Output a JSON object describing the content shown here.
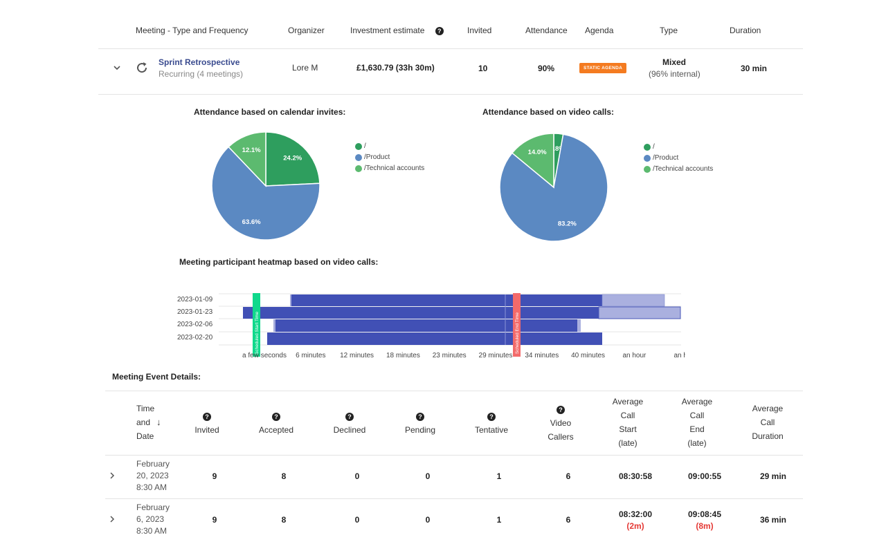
{
  "header": {
    "col_meeting": "Meeting - Type and Frequency",
    "col_organizer": "Organizer",
    "col_investment": "Investment  estimate",
    "col_invited": "Invited",
    "col_attendance": "Attendance",
    "col_agenda": "Agenda",
    "col_type": "Type",
    "col_duration": "Duration"
  },
  "meeting": {
    "title": "Sprint Retrospective",
    "recurrence": "Recurring (4 meetings)",
    "organizer": "Lore M",
    "investment": "£1,630.79 (33h 30m)",
    "invited": "10",
    "attendance": "90%",
    "agenda_badge": "STATIC AGENDA",
    "type": "Mixed",
    "type_detail": "(96% internal)",
    "duration": "30 min"
  },
  "charts_titles": {
    "calendar": "Attendance based on calendar invites:",
    "video": "Attendance based on video calls:",
    "heatmap": "Meeting participant heatmap based on video calls:"
  },
  "legend": [
    {
      "label": "/",
      "color": "#2e9e5e"
    },
    {
      "label": "/Product",
      "color": "#5b89c2"
    },
    {
      "label": "/Technical accounts",
      "color": "#5cba6f"
    }
  ],
  "chart_data": [
    {
      "type": "pie",
      "title": "Attendance based on calendar invites:",
      "labels": [
        "/",
        "/Product",
        "/Technical accounts"
      ],
      "values": [
        24.2,
        63.6,
        12.1
      ],
      "value_labels": [
        "24.2%",
        "63.6%",
        "12.1%"
      ],
      "colors": [
        "#2e9e5e",
        "#5b89c2",
        "#5cba6f"
      ],
      "legend": "right"
    },
    {
      "type": "pie",
      "title": "Attendance based on video calls:",
      "labels": [
        "/",
        "/Product",
        "/Technical accounts"
      ],
      "values": [
        2.8,
        83.2,
        14.0
      ],
      "value_labels": [
        "2.8%",
        "83.2%",
        "14.0%"
      ],
      "colors": [
        "#2e9e5e",
        "#5b89c2",
        "#5cba6f"
      ],
      "legend": "right"
    },
    {
      "type": "heatmap",
      "title": "Meeting participant heatmap based on video calls:",
      "rows": [
        "2023-01-09",
        "2023-01-23",
        "2023-02-06",
        "2023-02-20"
      ],
      "x_tick_labels": [
        "a few seconds",
        "6 minutes",
        "12 minutes",
        "18 minutes",
        "23 minutes",
        "29 minutes",
        "34 minutes",
        "40 minutes",
        "an hour",
        "an h"
      ],
      "markers": [
        "Scheduled Start Time",
        "Scheduled End Time"
      ]
    }
  ],
  "details": {
    "title": "Meeting Event Details:",
    "columns": {
      "time": [
        "Time",
        "and",
        "Date"
      ],
      "invited": "Invited",
      "accepted": "Accepted",
      "declined": "Declined",
      "pending": "Pending",
      "tentative": "Tentative",
      "video": [
        "Video",
        "Callers"
      ],
      "avg_start": [
        "Average",
        "Call",
        "Start",
        "(late)"
      ],
      "avg_end": [
        "Average",
        "Call",
        "End",
        "(late)"
      ],
      "avg_duration": [
        "Average",
        "Call",
        "Duration"
      ]
    },
    "rows": [
      {
        "date": [
          "February",
          "20, 2023",
          "8:30 AM"
        ],
        "invited": "9",
        "accepted": "8",
        "declined": "0",
        "pending": "0",
        "tentative": "1",
        "video": "6",
        "start": "08:30:58",
        "start_late": "",
        "end": "09:00:55",
        "end_late": "",
        "duration": "29 min"
      },
      {
        "date": [
          "February",
          "6, 2023",
          "8:30 AM"
        ],
        "invited": "9",
        "accepted": "8",
        "declined": "0",
        "pending": "0",
        "tentative": "1",
        "video": "6",
        "start": "08:32:00",
        "start_late": "(2m)",
        "end": "09:08:45",
        "end_late": "(8m)",
        "duration": "36 min"
      }
    ]
  }
}
